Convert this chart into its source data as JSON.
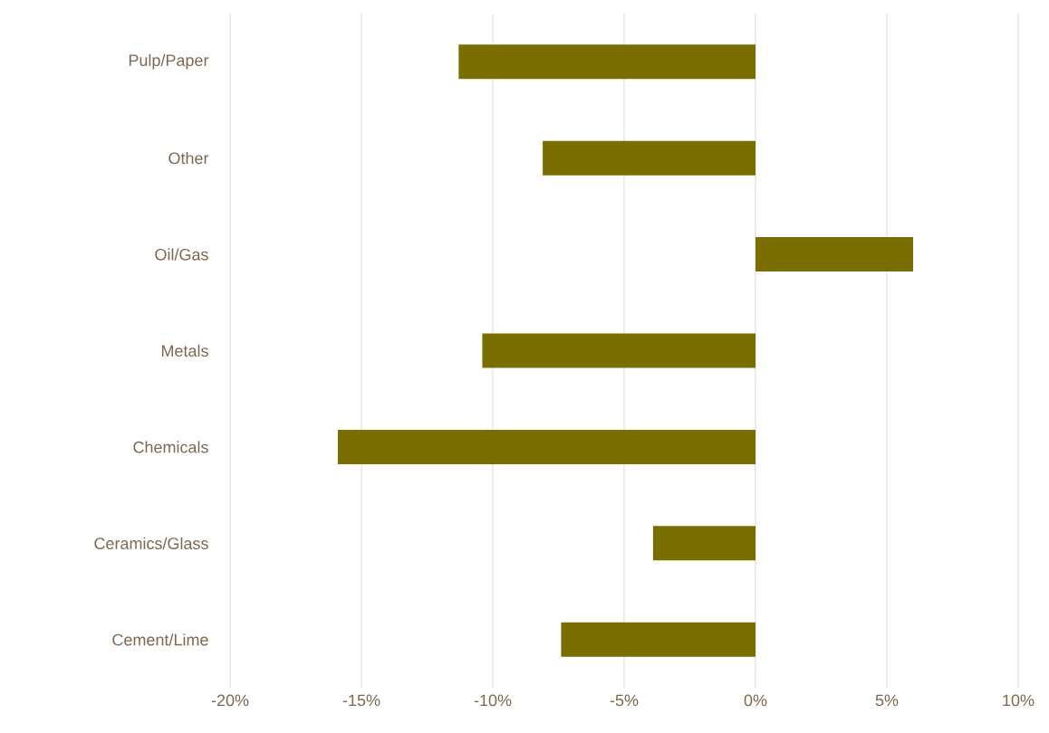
{
  "chart_data": {
    "type": "bar",
    "orientation": "horizontal",
    "categories": [
      "Pulp/Paper",
      "Other",
      "Oil/Gas",
      "Metals",
      "Chemicals",
      "Ceramics/Glass",
      "Cement/Lime"
    ],
    "values": [
      -11.3,
      -8.1,
      6.0,
      -10.4,
      -15.9,
      -3.9,
      -7.4
    ],
    "color": "#7a6e00",
    "xlim": [
      -20,
      10
    ],
    "xticks": [
      {
        "value": -20,
        "label": "-20%"
      },
      {
        "value": -15,
        "label": "-15%"
      },
      {
        "value": -10,
        "label": "-10%"
      },
      {
        "value": -5,
        "label": "-5%"
      },
      {
        "value": 0,
        "label": "0%"
      },
      {
        "value": 5,
        "label": "5%"
      },
      {
        "value": 10,
        "label": "10%"
      }
    ],
    "grid": "x"
  }
}
